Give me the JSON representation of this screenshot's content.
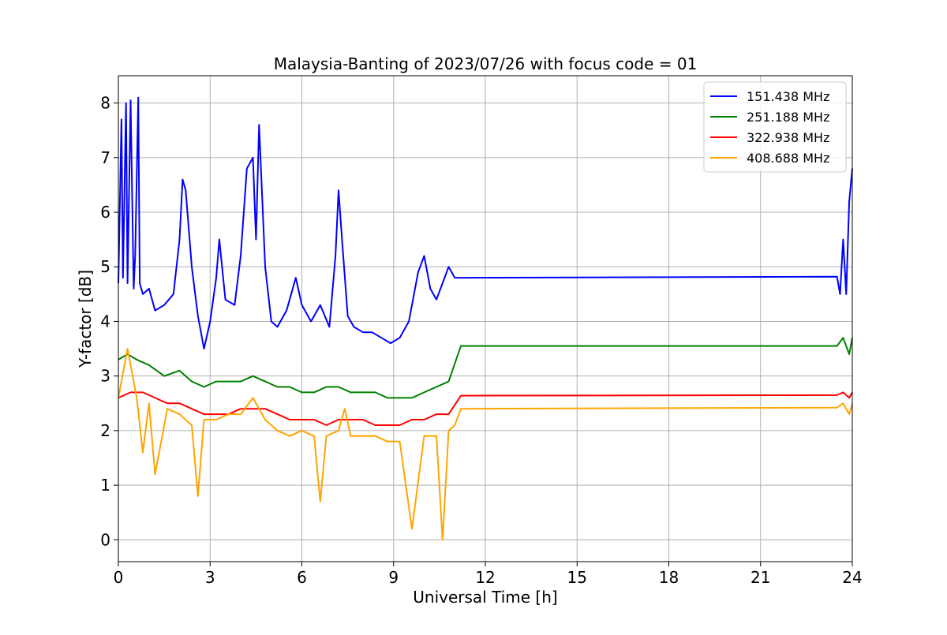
{
  "chart_data": {
    "type": "line",
    "title": "Malaysia-Banting of 2023/07/26 with focus code = 01",
    "xlabel": "Universal Time [h]",
    "ylabel": "Y-factor [dB]",
    "xlim": [
      0,
      24
    ],
    "ylim": [
      -0.4,
      8.5
    ],
    "xticks": [
      0,
      3,
      6,
      9,
      12,
      15,
      18,
      21,
      24
    ],
    "yticks": [
      0,
      1,
      2,
      3,
      4,
      5,
      6,
      7,
      8
    ],
    "grid": true,
    "legend_position": "top-right",
    "series": [
      {
        "name": "151.438 MHz",
        "color": "#0000ff",
        "x": [
          0.0,
          0.1,
          0.15,
          0.25,
          0.3,
          0.4,
          0.5,
          0.55,
          0.65,
          0.7,
          0.8,
          1.0,
          1.2,
          1.5,
          1.8,
          2.0,
          2.1,
          2.2,
          2.4,
          2.6,
          2.8,
          3.0,
          3.2,
          3.3,
          3.5,
          3.8,
          4.0,
          4.2,
          4.4,
          4.5,
          4.6,
          4.8,
          5.0,
          5.2,
          5.5,
          5.8,
          6.0,
          6.3,
          6.6,
          6.9,
          7.1,
          7.2,
          7.3,
          7.5,
          7.7,
          8.0,
          8.3,
          8.6,
          8.9,
          9.2,
          9.5,
          9.8,
          10.0,
          10.2,
          10.4,
          10.6,
          10.8,
          11.0,
          11.2,
          23.5,
          23.6,
          23.7,
          23.8,
          23.9,
          24.0
        ],
        "y": [
          4.7,
          7.7,
          4.8,
          8.0,
          4.7,
          8.05,
          4.6,
          5.2,
          8.1,
          4.7,
          4.5,
          4.6,
          4.2,
          4.3,
          4.5,
          5.5,
          6.6,
          6.4,
          5.0,
          4.1,
          3.5,
          4.0,
          4.8,
          5.5,
          4.4,
          4.3,
          5.2,
          6.8,
          7.0,
          5.5,
          7.6,
          5.0,
          4.0,
          3.9,
          4.2,
          4.8,
          4.3,
          4.0,
          4.3,
          3.9,
          5.2,
          6.4,
          5.6,
          4.1,
          3.9,
          3.8,
          3.8,
          3.7,
          3.6,
          3.7,
          4.0,
          4.9,
          5.2,
          4.6,
          4.4,
          4.7,
          5.0,
          4.8,
          4.8,
          4.82,
          4.5,
          5.5,
          4.5,
          6.2,
          6.8
        ]
      },
      {
        "name": "251.188 MHz",
        "color": "#008000",
        "x": [
          0.0,
          0.3,
          0.6,
          1.0,
          1.5,
          2.0,
          2.4,
          2.8,
          3.2,
          3.6,
          4.0,
          4.4,
          4.8,
          5.2,
          5.6,
          6.0,
          6.4,
          6.8,
          7.2,
          7.6,
          8.0,
          8.4,
          8.8,
          9.2,
          9.6,
          10.0,
          10.4,
          10.8,
          11.2,
          23.5,
          23.7,
          23.9,
          24.0
        ],
        "y": [
          3.3,
          3.4,
          3.3,
          3.2,
          3.0,
          3.1,
          2.9,
          2.8,
          2.9,
          2.9,
          2.9,
          3.0,
          2.9,
          2.8,
          2.8,
          2.7,
          2.7,
          2.8,
          2.8,
          2.7,
          2.7,
          2.7,
          2.6,
          2.6,
          2.6,
          2.7,
          2.8,
          2.9,
          3.55,
          3.55,
          3.7,
          3.4,
          3.7
        ]
      },
      {
        "name": "322.938 MHz",
        "color": "#ff0000",
        "x": [
          0.0,
          0.4,
          0.8,
          1.2,
          1.6,
          2.0,
          2.4,
          2.8,
          3.2,
          3.6,
          4.0,
          4.4,
          4.8,
          5.2,
          5.6,
          6.0,
          6.4,
          6.8,
          7.2,
          7.6,
          8.0,
          8.4,
          8.8,
          9.2,
          9.6,
          10.0,
          10.4,
          10.8,
          11.2,
          23.5,
          23.7,
          23.9,
          24.0
        ],
        "y": [
          2.6,
          2.7,
          2.7,
          2.6,
          2.5,
          2.5,
          2.4,
          2.3,
          2.3,
          2.3,
          2.4,
          2.4,
          2.4,
          2.3,
          2.2,
          2.2,
          2.2,
          2.1,
          2.2,
          2.2,
          2.2,
          2.1,
          2.1,
          2.1,
          2.2,
          2.2,
          2.3,
          2.3,
          2.64,
          2.65,
          2.7,
          2.6,
          2.7
        ]
      },
      {
        "name": "408.688 MHz",
        "color": "#ffa500",
        "x": [
          0.0,
          0.3,
          0.6,
          0.8,
          1.0,
          1.2,
          1.6,
          2.0,
          2.4,
          2.6,
          2.8,
          3.2,
          3.6,
          4.0,
          4.4,
          4.8,
          5.2,
          5.6,
          6.0,
          6.4,
          6.6,
          6.8,
          7.2,
          7.4,
          7.6,
          8.0,
          8.4,
          8.8,
          9.2,
          9.6,
          10.0,
          10.4,
          10.6,
          10.8,
          11.0,
          11.2,
          23.5,
          23.7,
          23.9,
          24.0
        ],
        "y": [
          2.6,
          3.5,
          2.6,
          1.6,
          2.5,
          1.2,
          2.4,
          2.3,
          2.1,
          0.8,
          2.2,
          2.2,
          2.3,
          2.3,
          2.6,
          2.2,
          2.0,
          1.9,
          2.0,
          1.9,
          0.7,
          1.9,
          2.0,
          2.4,
          1.9,
          1.9,
          1.9,
          1.8,
          1.8,
          0.2,
          1.9,
          1.9,
          0.0,
          2.0,
          2.1,
          2.4,
          2.42,
          2.5,
          2.3,
          2.5
        ]
      }
    ]
  }
}
